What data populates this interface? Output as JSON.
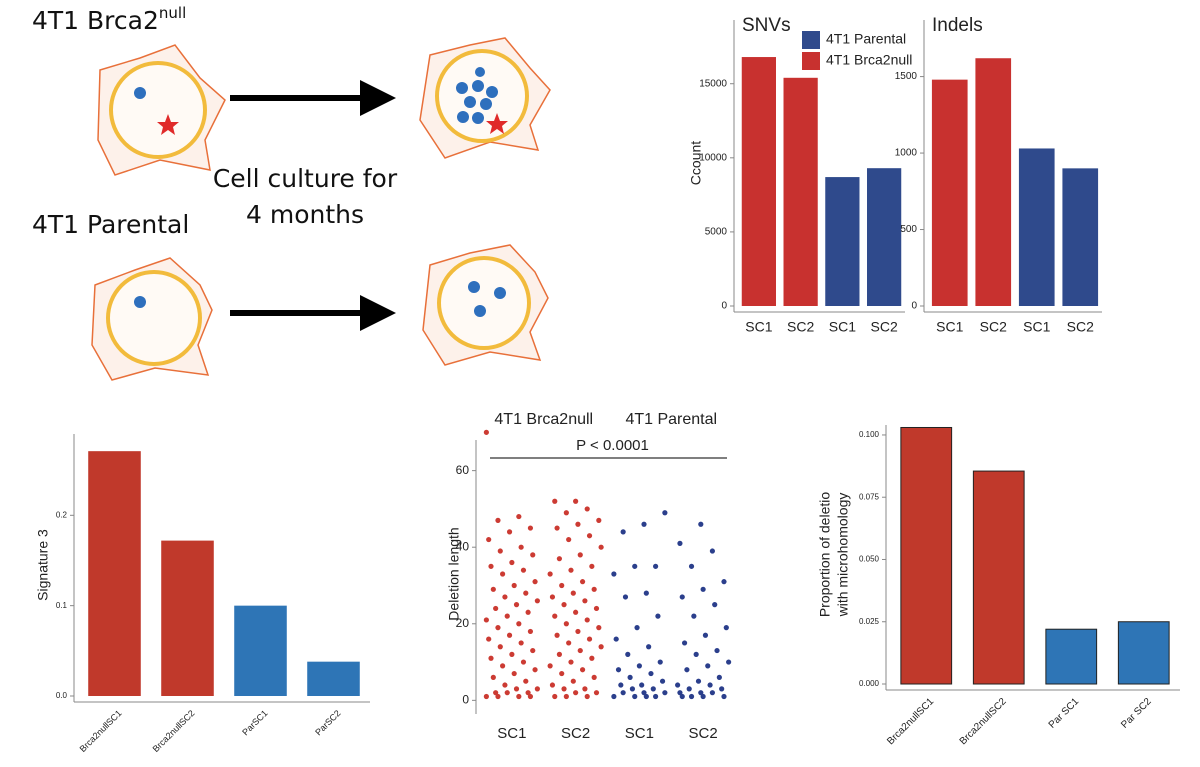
{
  "diagram": {
    "top_label": {
      "text": "4T1 Brca2",
      "sup": "null"
    },
    "bottom_label": "4T1 Parental",
    "arrow_text": [
      "Cell culture for",
      "4 months"
    ]
  },
  "chart_data": [
    {
      "type": "bar",
      "title": "SNVs",
      "ylabel": "Ccount",
      "legend": "top",
      "categories": [
        "SC1",
        "SC2",
        "SC1",
        "SC2"
      ],
      "series": [
        {
          "name": "4T1 Parental",
          "color": "#2f4a8c",
          "values": [
            null,
            null,
            8700,
            9300
          ]
        },
        {
          "name": "4T1 Brca2null",
          "color": "#c8312f",
          "values": [
            16800,
            15400,
            null,
            null
          ]
        }
      ],
      "ylim": [
        0,
        19300
      ],
      "yticks": [
        0,
        5000,
        10000,
        15000
      ]
    },
    {
      "type": "bar",
      "title": "Indels",
      "categories": [
        "SC1",
        "SC2",
        "SC1",
        "SC2"
      ],
      "series": [
        {
          "color": "#2f4a8c",
          "values": [
            null,
            null,
            1030,
            900
          ]
        },
        {
          "color": "#c8312f",
          "values": [
            1480,
            1620,
            null,
            null
          ]
        }
      ],
      "ylim": [
        0,
        1870
      ],
      "yticks": [
        0,
        500,
        1000,
        1500
      ]
    },
    {
      "type": "bar",
      "ylabel": "Signature 3",
      "categories": [
        "Brca2nullSC1",
        "Brca2nullSC2",
        "ParSC1",
        "ParSC2"
      ],
      "values": [
        0.271,
        0.172,
        0.1,
        0.038
      ],
      "colors": [
        "#c0392b",
        "#c0392b",
        "#2e75b6",
        "#2e75b6"
      ],
      "ylim": [
        0,
        0.29
      ],
      "yticks": [
        {
          "value": 0,
          "label": "0.0"
        },
        0.1,
        0.2
      ]
    },
    {
      "type": "strip",
      "ylabel": "Deletion length",
      "group_labels": [
        "4T1 Brca2null",
        "4T1 Parental"
      ],
      "annotation": "P < 0.0001",
      "categories": [
        "SC1",
        "SC2",
        "SC1",
        "SC2"
      ],
      "groups": [
        {
          "color": "#cc3b33",
          "values": [
            70,
            48,
            47,
            45,
            44,
            42,
            40,
            39,
            38,
            36,
            35,
            34,
            33,
            31,
            30,
            29,
            28,
            27,
            26,
            25,
            24,
            23,
            22,
            21,
            20,
            19,
            18,
            17,
            16,
            15,
            14,
            13,
            12,
            11,
            10,
            9,
            8,
            7,
            6,
            5,
            4,
            3,
            3,
            2,
            2,
            2,
            1,
            1,
            1,
            1
          ]
        },
        {
          "color": "#cc3b33",
          "values": [
            52,
            52,
            50,
            49,
            47,
            46,
            45,
            43,
            42,
            40,
            38,
            37,
            35,
            34,
            33,
            31,
            30,
            29,
            28,
            27,
            26,
            25,
            24,
            23,
            22,
            21,
            20,
            19,
            18,
            17,
            16,
            15,
            14,
            13,
            12,
            11,
            10,
            9,
            8,
            7,
            6,
            5,
            4,
            3,
            3,
            2,
            2,
            1,
            1,
            1
          ]
        },
        {
          "color": "#2b3f8c",
          "values": [
            49,
            46,
            44,
            35,
            35,
            33,
            28,
            27,
            22,
            19,
            16,
            14,
            12,
            10,
            9,
            8,
            7,
            6,
            5,
            4,
            4,
            3,
            3,
            2,
            2,
            2,
            1,
            1,
            1,
            1
          ]
        },
        {
          "color": "#2b3f8c",
          "values": [
            46,
            41,
            39,
            35,
            31,
            29,
            27,
            25,
            22,
            19,
            17,
            15,
            13,
            12,
            10,
            9,
            8,
            6,
            5,
            4,
            4,
            3,
            3,
            2,
            2,
            2,
            1,
            1,
            1,
            1
          ]
        }
      ],
      "ylim": [
        -2,
        68
      ],
      "yticks": [
        0,
        20,
        40,
        60
      ]
    },
    {
      "type": "bar",
      "ylabel": [
        "Proportion of deletio",
        "with microhomology"
      ],
      "categories": [
        "Brca2nullSC1",
        "Brca2nullSC2",
        "Par SC1",
        "Par SC2"
      ],
      "values": [
        0.103,
        0.0855,
        0.022,
        0.025
      ],
      "colors": [
        "#c0392b",
        "#c0392b",
        "#2e75b6",
        "#2e75b6"
      ],
      "edgecolor": "#222",
      "ylim": [
        0,
        0.104
      ],
      "yticks": [
        {
          "value": 0,
          "label": "0.000"
        },
        {
          "value": 0.025,
          "label": "0.025"
        },
        {
          "value": 0.05,
          "label": "0.050"
        },
        {
          "value": 0.075,
          "label": "0.075"
        },
        {
          "value": 0.1,
          "label": "0.100"
        }
      ]
    }
  ]
}
